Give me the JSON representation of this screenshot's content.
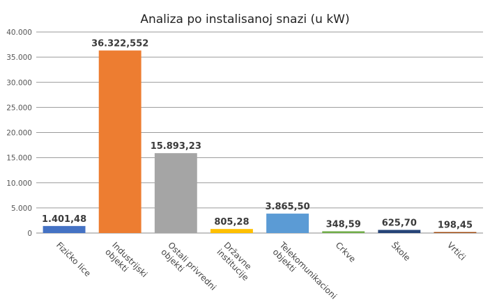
{
  "chart_data": {
    "type": "bar",
    "title": "Analiza po instalisanoj snazi (u kW)",
    "xlabel": "",
    "ylabel": "",
    "ylim": [
      0,
      40000
    ],
    "yticks": [
      {
        "value": 0,
        "label": "0"
      },
      {
        "value": 5000,
        "label": "5.000"
      },
      {
        "value": 10000,
        "label": "10.000"
      },
      {
        "value": 15000,
        "label": "15.000"
      },
      {
        "value": 20000,
        "label": "20.000"
      },
      {
        "value": 25000,
        "label": "25.000"
      },
      {
        "value": 30000,
        "label": "30.000"
      },
      {
        "value": 35000,
        "label": "35.000"
      },
      {
        "value": 40000,
        "label": "40.000"
      }
    ],
    "grid": true,
    "legend": "none",
    "categories": [
      [
        "Fizičko lice"
      ],
      [
        "Industrijski",
        "objekti"
      ],
      [
        "Ostali privredni",
        "objekti"
      ],
      [
        "Državne",
        "institucije"
      ],
      [
        "Telekomunikacioni",
        "objekti"
      ],
      [
        "Crkve"
      ],
      [
        "Škole"
      ],
      [
        "Vrtići"
      ]
    ],
    "values": [
      1401.48,
      36322.552,
      15893.23,
      805.28,
      3865.5,
      348.59,
      625.7,
      198.45
    ],
    "value_labels": [
      "1.401,48",
      "36.322,552",
      "15.893,23",
      "805,28",
      "3.865,50",
      "348,59",
      "625,70",
      "198,45"
    ],
    "colors": [
      "#4472c4",
      "#ed7d31",
      "#a5a5a5",
      "#ffc000",
      "#5b9bd5",
      "#70ad47",
      "#264478",
      "#9e480e"
    ]
  }
}
